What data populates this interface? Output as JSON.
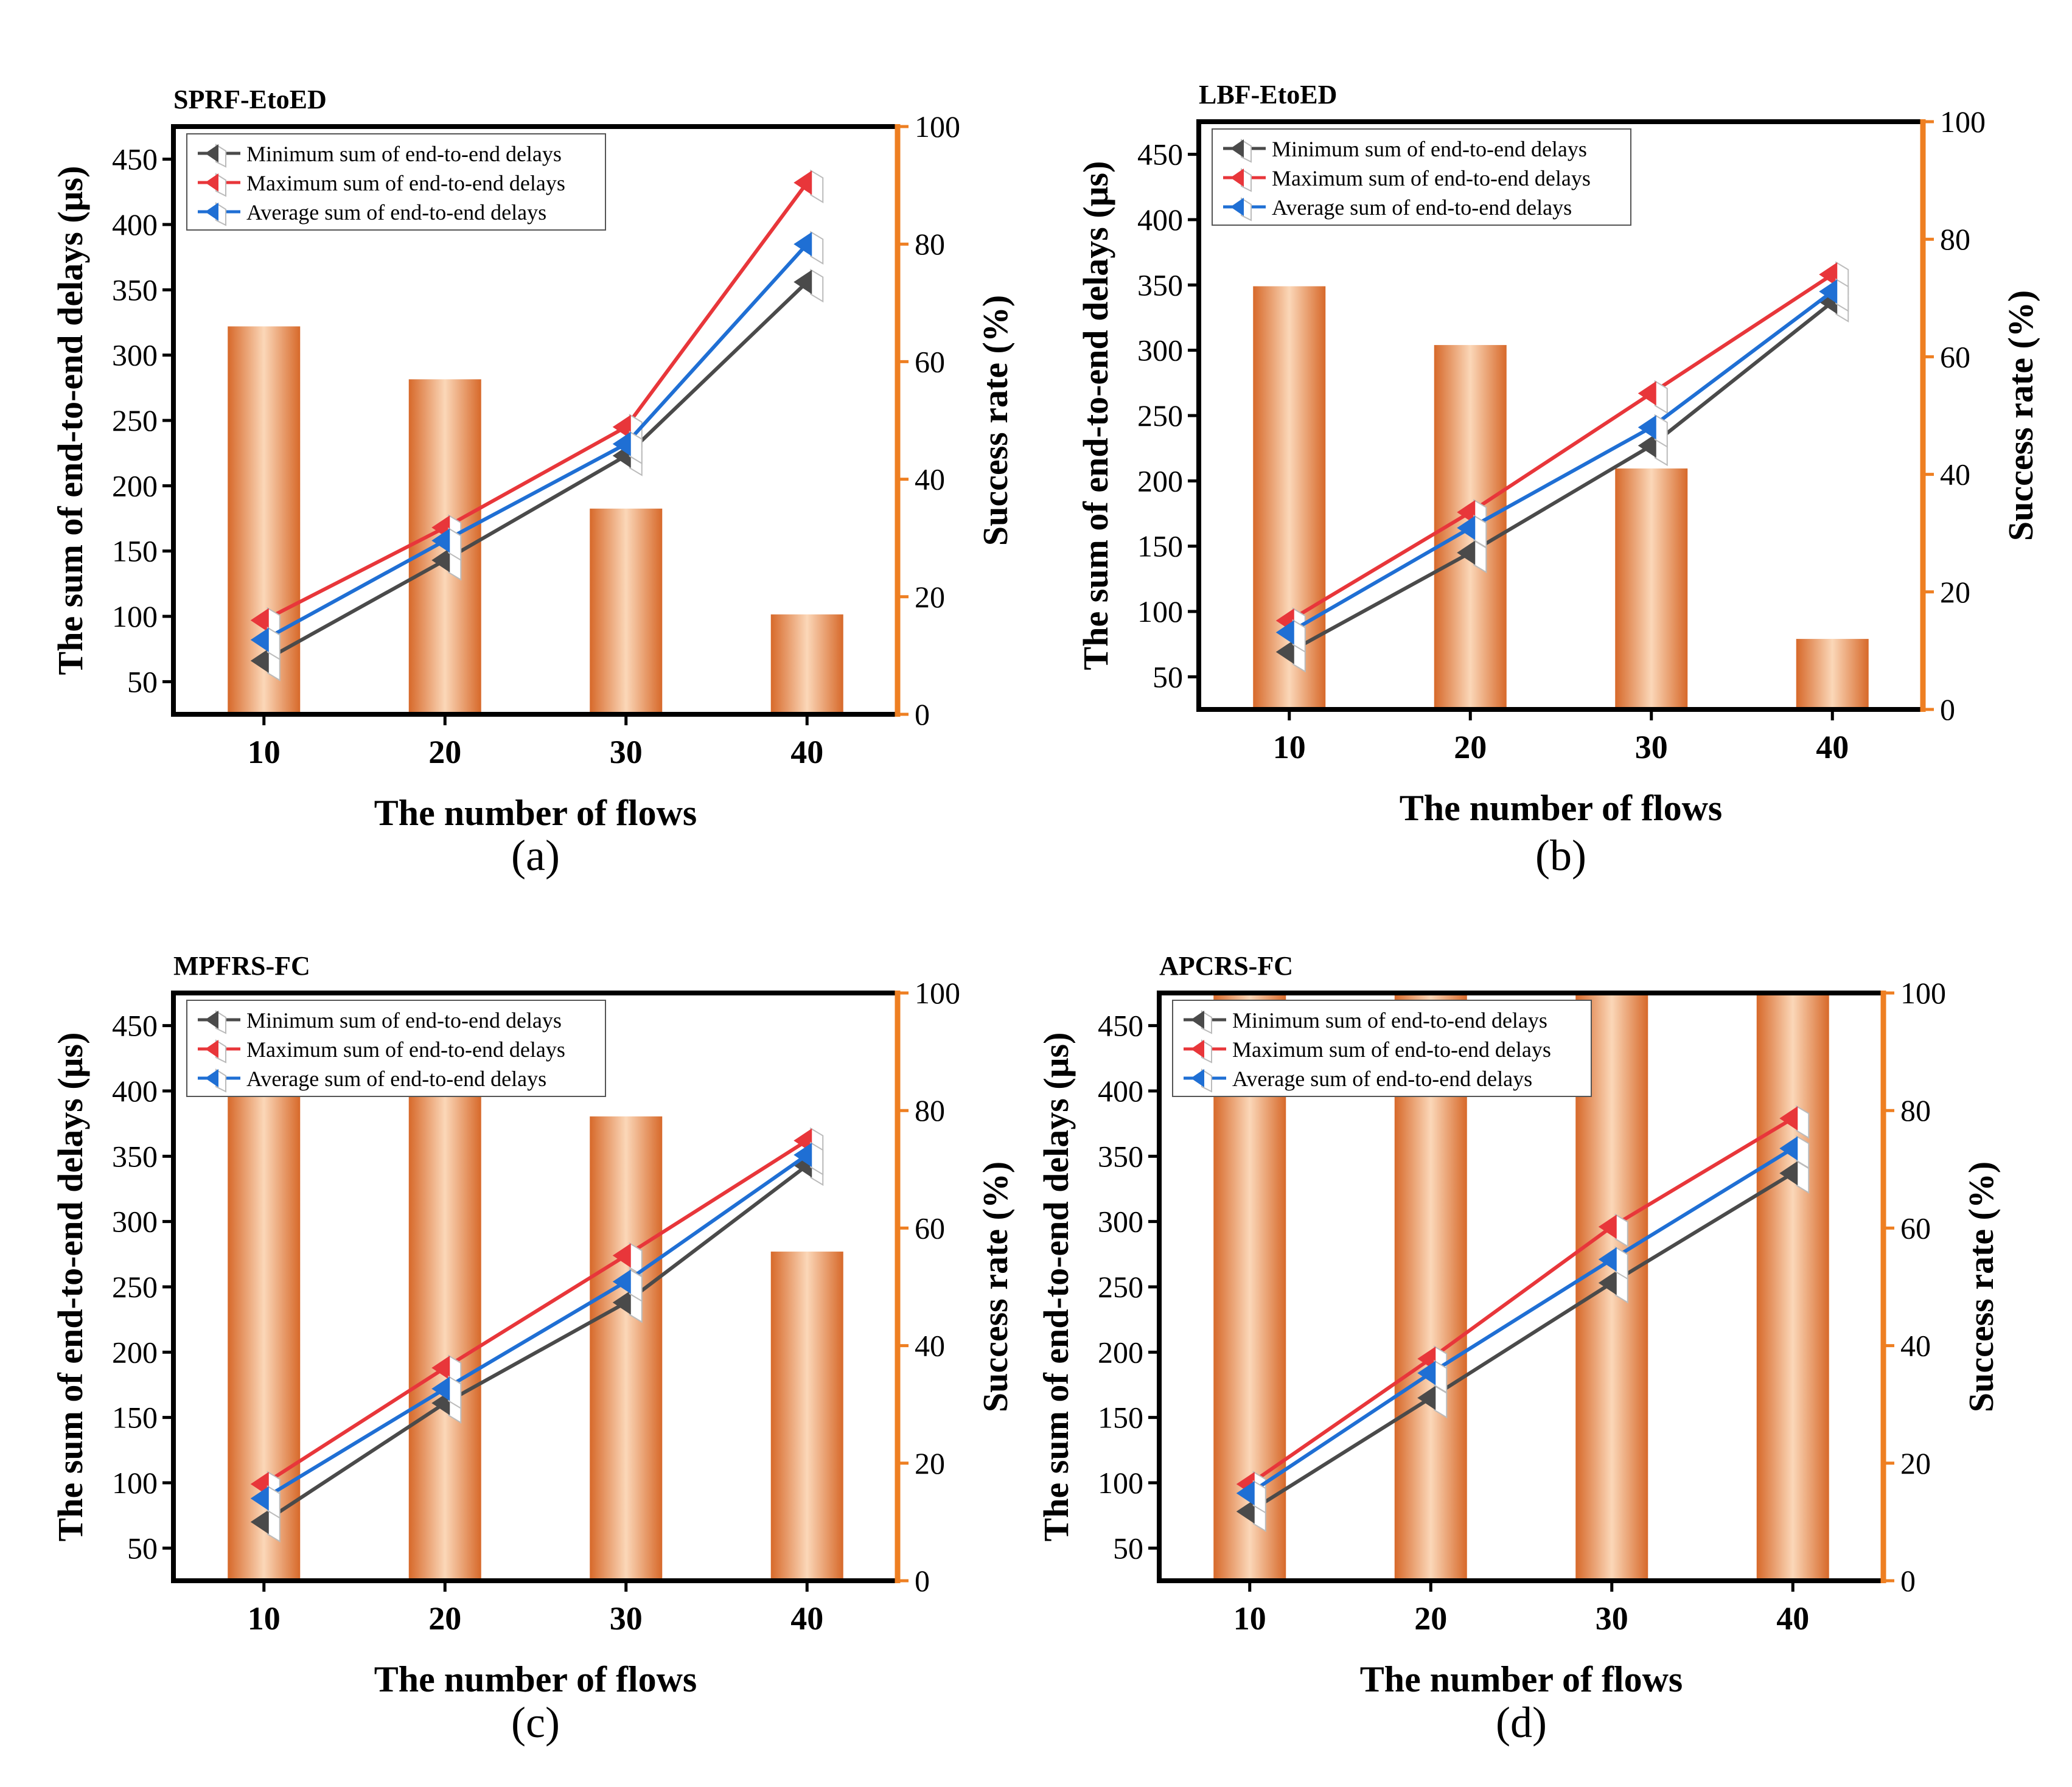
{
  "figure": {
    "legend_labels": [
      "Minimum  sum of end-to-end delays",
      "Maximum sum of end-to-end delays",
      "Average sum of end-to-end delays"
    ],
    "colors": {
      "min": "#4a4a4a",
      "max": "#e8363a",
      "avg": "#1f6fd4",
      "right_axis": "#ee7f22",
      "bar_dark": "#d7692a",
      "bar_light": "#fbd7b8"
    }
  },
  "chart_data": [
    {
      "type": "bar+line",
      "panel_label": "(a)",
      "title": "SPRF-EtoED",
      "xlabel": "The number of flows",
      "ylabel_left": "The sum of end-to-end delays (μs)",
      "ylabel_right": "Success rate (%)",
      "categories": [
        "10",
        "20",
        "30",
        "40"
      ],
      "ylim_left": [
        25,
        475
      ],
      "yticks_left": [
        50,
        100,
        150,
        200,
        250,
        300,
        350,
        400,
        450
      ],
      "ylim_right": [
        0,
        100
      ],
      "yticks_right": [
        0,
        20,
        40,
        60,
        80,
        100
      ],
      "bars": {
        "name": "Success rate (%)",
        "values": [
          66,
          57,
          35,
          17
        ]
      },
      "series": [
        {
          "name": "Minimum  sum of end-to-end delays",
          "values": [
            66,
            143,
            223,
            356
          ]
        },
        {
          "name": "Maximum sum of end-to-end delays",
          "values": [
            97,
            168,
            245,
            432
          ]
        },
        {
          "name": "Average sum of end-to-end delays",
          "values": [
            82,
            158,
            232,
            385
          ]
        }
      ],
      "legend_position": "top-left"
    },
    {
      "type": "bar+line",
      "panel_label": "(b)",
      "title": "LBF-EtoED",
      "xlabel": "The number of flows",
      "ylabel_left": "The sum of end-to-end delays (μs)",
      "ylabel_right": "Success rate (%)",
      "categories": [
        "10",
        "20",
        "30",
        "40"
      ],
      "ylim_left": [
        25,
        475
      ],
      "yticks_left": [
        50,
        100,
        150,
        200,
        250,
        300,
        350,
        400,
        450
      ],
      "ylim_right": [
        0,
        100
      ],
      "yticks_right": [
        0,
        20,
        40,
        60,
        80,
        100
      ],
      "bars": {
        "name": "Success rate (%)",
        "values": [
          72,
          62,
          41,
          12
        ]
      },
      "series": [
        {
          "name": "Minimum  sum of end-to-end delays",
          "values": [
            69,
            145,
            227,
            337
          ]
        },
        {
          "name": "Maximum sum of end-to-end delays",
          "values": [
            93,
            176,
            267,
            358
          ]
        },
        {
          "name": "Average sum of end-to-end delays",
          "values": [
            84,
            164,
            241,
            345
          ]
        }
      ],
      "legend_position": "top-left"
    },
    {
      "type": "bar+line",
      "panel_label": "(c)",
      "title": "MPFRS-FC",
      "xlabel": "The number of flows",
      "ylabel_left": "The sum of end-to-end delays (μs)",
      "ylabel_right": "Success rate (%)",
      "categories": [
        "10",
        "20",
        "30",
        "40"
      ],
      "ylim_left": [
        25,
        475
      ],
      "yticks_left": [
        50,
        100,
        150,
        200,
        250,
        300,
        350,
        400,
        450
      ],
      "ylim_right": [
        0,
        100
      ],
      "yticks_right": [
        0,
        20,
        40,
        60,
        80,
        100
      ],
      "bars": {
        "name": "Success rate (%)",
        "values": [
          91,
          87,
          79,
          56
        ]
      },
      "series": [
        {
          "name": "Minimum  sum of end-to-end delays",
          "values": [
            70,
            161,
            238,
            343
          ]
        },
        {
          "name": "Maximum sum of end-to-end delays",
          "values": [
            99,
            188,
            274,
            362
          ]
        },
        {
          "name": "Average sum of end-to-end delays",
          "values": [
            88,
            172,
            254,
            351
          ]
        }
      ],
      "legend_position": "top-left"
    },
    {
      "type": "bar+line",
      "panel_label": "(d)",
      "title": "APCRS-FC",
      "xlabel": "The number of flows",
      "ylabel_left": "The sum of end-to-end delays (μs)",
      "ylabel_right": "Success rate (%)",
      "categories": [
        "10",
        "20",
        "30",
        "40"
      ],
      "ylim_left": [
        25,
        475
      ],
      "yticks_left": [
        50,
        100,
        150,
        200,
        250,
        300,
        350,
        400,
        450
      ],
      "ylim_right": [
        0,
        100
      ],
      "yticks_right": [
        0,
        20,
        40,
        60,
        80,
        100
      ],
      "bars": {
        "name": "Success rate (%)",
        "values": [
          100,
          100,
          100,
          100
        ]
      },
      "series": [
        {
          "name": "Minimum  sum of end-to-end delays",
          "values": [
            78,
            165,
            253,
            337
          ]
        },
        {
          "name": "Maximum sum of end-to-end delays",
          "values": [
            99,
            195,
            296,
            379
          ]
        },
        {
          "name": "Average sum of end-to-end delays",
          "values": [
            92,
            184,
            271,
            356
          ]
        }
      ],
      "legend_position": "top-left"
    }
  ]
}
